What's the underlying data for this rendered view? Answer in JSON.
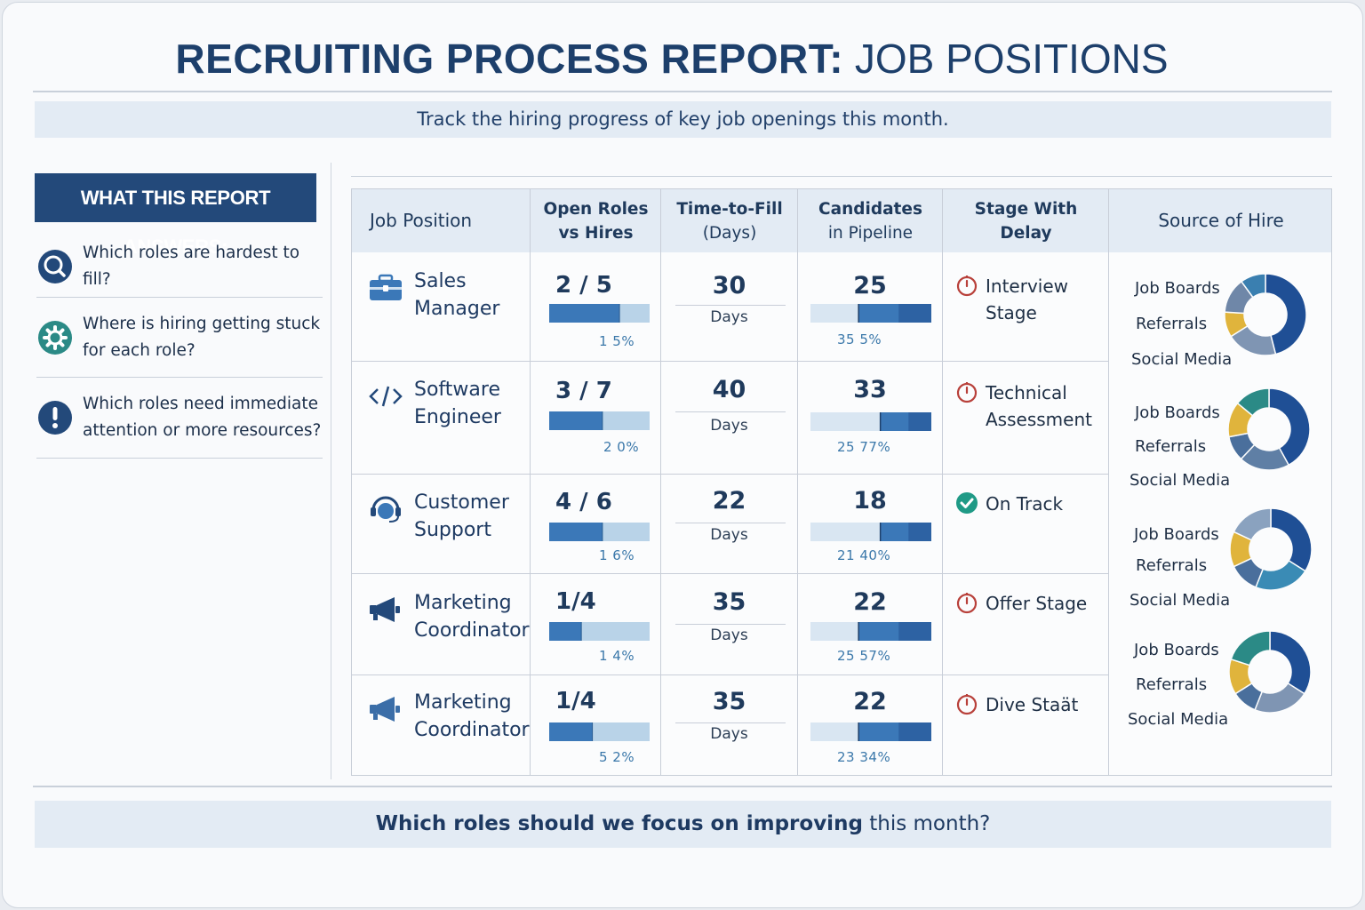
{
  "title": {
    "bold": "RECRUITING PROCESS REPORT:",
    "light": "JOB POSITIONS"
  },
  "subtitle": "Track the hiring progress of key job openings this month.",
  "sidebar": {
    "heading": "WHAT THIS REPORT ANSWERS:",
    "questions": [
      {
        "text": "Which roles are hardest to fill?",
        "icon": "magnifier-icon"
      },
      {
        "text": "Where is hiring getting stuck for each role?",
        "icon": "gear-icon"
      },
      {
        "text": "Which roles need immediate attention or more resources?",
        "icon": "exclamation-icon"
      }
    ]
  },
  "table": {
    "headers": {
      "job": "Job Position",
      "open_roles": "Open Roles vs Hires",
      "time_to_fill_a": "Time-to-Fill",
      "time_to_fill_b": "(Days)",
      "candidates_a": "Candidates",
      "candidates_b": "in Pipeline",
      "stage_a": "Stage With",
      "stage_b": "Delay",
      "source": "Source of Hire"
    },
    "rows": [
      {
        "job": "Sales Manager",
        "icon": "briefcase-icon",
        "ratio": "2 / 5",
        "hires_fill": 0.7,
        "hires_label": "1  5%",
        "time": "30",
        "days": "Days",
        "candidates": "25",
        "pipe_fill": 0.6,
        "pipe_label": "35   5%",
        "stage": "Interview Stage",
        "stage_status": "delay",
        "sources": [
          "Job Boards",
          "Referrals",
          "Social Media"
        ]
      },
      {
        "job": "Software Engineer",
        "icon": "code-icon",
        "ratio": "3 / 7",
        "hires_fill": 0.53,
        "hires_label": "2  0%",
        "time": "40",
        "days": "Days",
        "candidates": "33",
        "pipe_fill": 0.42,
        "pipe_label": "25   77%",
        "stage": "Technical Assessment",
        "stage_status": "delay",
        "sources": [
          "Job Boards",
          "Referrals",
          "Social Media"
        ]
      },
      {
        "job": "Customer Support",
        "icon": "headset-icon",
        "ratio": "4 / 6",
        "hires_fill": 0.53,
        "hires_label": "1  6%",
        "time": "22",
        "days": "Days",
        "candidates": "18",
        "pipe_fill": 0.42,
        "pipe_label": "21   40%",
        "stage": "On Track",
        "stage_status": "ok",
        "sources": [
          "Job Boards",
          "Referrals",
          "Social Media"
        ]
      },
      {
        "job": "Marketing Coordinator",
        "icon": "megaphone-icon",
        "ratio": "1/4",
        "hires_fill": 0.32,
        "hires_label": "1  4%",
        "time": "35",
        "days": "Days",
        "candidates": "22",
        "pipe_fill": 0.6,
        "pipe_label": "25  57%",
        "stage": "Offer Stage",
        "stage_status": "delay",
        "sources": [
          "Job Boards",
          "Referrals",
          "Social Media"
        ]
      },
      {
        "job": "Marketing Coordinator",
        "icon": "megaphone-icon",
        "ratio": "1/4",
        "hires_fill": 0.43,
        "hires_label": "5  2%",
        "time": "35",
        "days": "Days",
        "candidates": "22",
        "pipe_fill": 0.6,
        "pipe_label": "23   34%",
        "stage": "Dive Staät",
        "stage_status": "delay",
        "sources": [
          "Job Boards",
          "Referrals",
          "Social Media"
        ]
      }
    ]
  },
  "footer_question": {
    "bold": "Which roles should we focus on improving",
    "rest": "this month?"
  },
  "colors": {
    "navy": "#1d3f6b",
    "bar_dark": "#3b78b8",
    "bar_light": "#b9d3e8",
    "gold": "#e0b43c",
    "teal": "#2b8a86",
    "red": "#b8403a",
    "green": "#1f9a86"
  }
}
